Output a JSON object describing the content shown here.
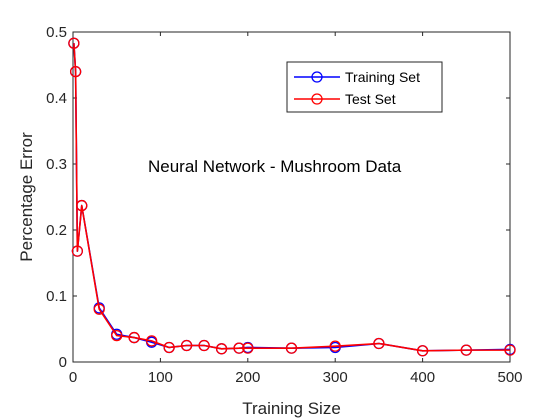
{
  "chart_data": {
    "type": "line",
    "title": "",
    "annotation": "Neural Network - Mushroom Data",
    "xlabel": "Training Size",
    "ylabel": "Percentage Error",
    "xlim": [
      0,
      500
    ],
    "ylim": [
      0,
      0.5
    ],
    "x_ticks": [
      0,
      100,
      200,
      300,
      400,
      500
    ],
    "y_ticks": [
      0,
      0.1,
      0.2,
      0.3,
      0.4,
      0.5
    ],
    "x_tick_labels": [
      "0",
      "100",
      "200",
      "300",
      "400",
      "500"
    ],
    "y_tick_labels": [
      "0",
      "0.1",
      "0.2",
      "0.3",
      "0.4",
      "0.5"
    ],
    "grid": false,
    "legend_position": "top-right",
    "series": [
      {
        "name": "Training Set",
        "color": "#0000ff",
        "x": [
          1,
          3,
          5,
          10,
          30,
          50,
          70,
          90,
          110,
          130,
          150,
          170,
          190,
          200,
          250,
          300,
          350,
          400,
          450,
          500
        ],
        "y": [
          0.483,
          0.44,
          0.168,
          0.237,
          0.082,
          0.042,
          0.037,
          0.03,
          0.022,
          0.025,
          0.025,
          0.02,
          0.021,
          0.022,
          0.021,
          0.022,
          0.028,
          0.017,
          0.018,
          0.019
        ]
      },
      {
        "name": "Test Set",
        "color": "#ff0000",
        "x": [
          1,
          3,
          5,
          10,
          30,
          50,
          70,
          90,
          110,
          130,
          150,
          170,
          190,
          200,
          250,
          300,
          350,
          400,
          450,
          500
        ],
        "y": [
          0.483,
          0.44,
          0.168,
          0.237,
          0.08,
          0.04,
          0.037,
          0.032,
          0.022,
          0.025,
          0.025,
          0.02,
          0.021,
          0.021,
          0.021,
          0.024,
          0.028,
          0.017,
          0.018,
          0.018
        ]
      }
    ]
  }
}
